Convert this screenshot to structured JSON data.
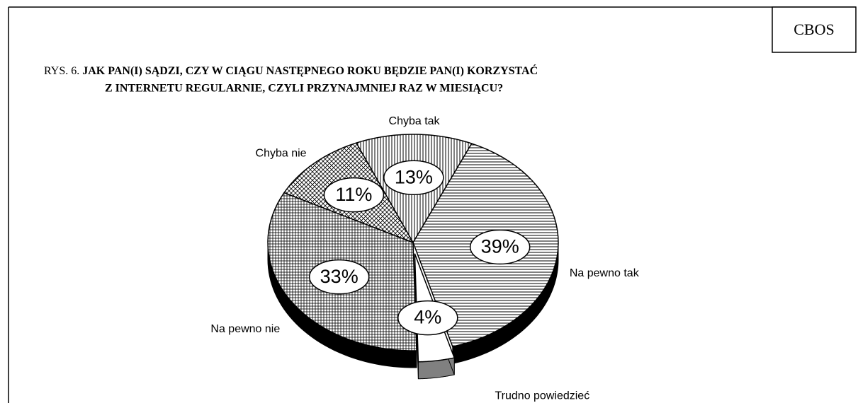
{
  "source": "CBOS",
  "chart_data": {
    "type": "pie",
    "figure_label": "RYS. 6.",
    "title": [
      "JAK PAN(I) SĄDZI, CZY W CIĄGU NASTĘPNEGO ROKU BĘDZIE PAN(I) KORZYSTAĆ",
      "Z  INTERNETU REGULARNIE, CZYLI PRZYNAJMNIEJ RAZ W MIESIĄCU?"
    ],
    "categories": [
      "Chyba tak",
      "Na pewno tak",
      "Trudno powiedzieć",
      "Na pewno nie",
      "Chyba nie"
    ],
    "values": [
      13,
      39,
      4,
      33,
      11
    ],
    "value_labels": [
      "13%",
      "39%",
      "4%",
      "33%",
      "11%"
    ],
    "patterns": [
      "vertical",
      "horizontal",
      "none",
      "grid",
      "crosshatch"
    ],
    "explode": [
      false,
      false,
      true,
      false,
      false
    ]
  }
}
